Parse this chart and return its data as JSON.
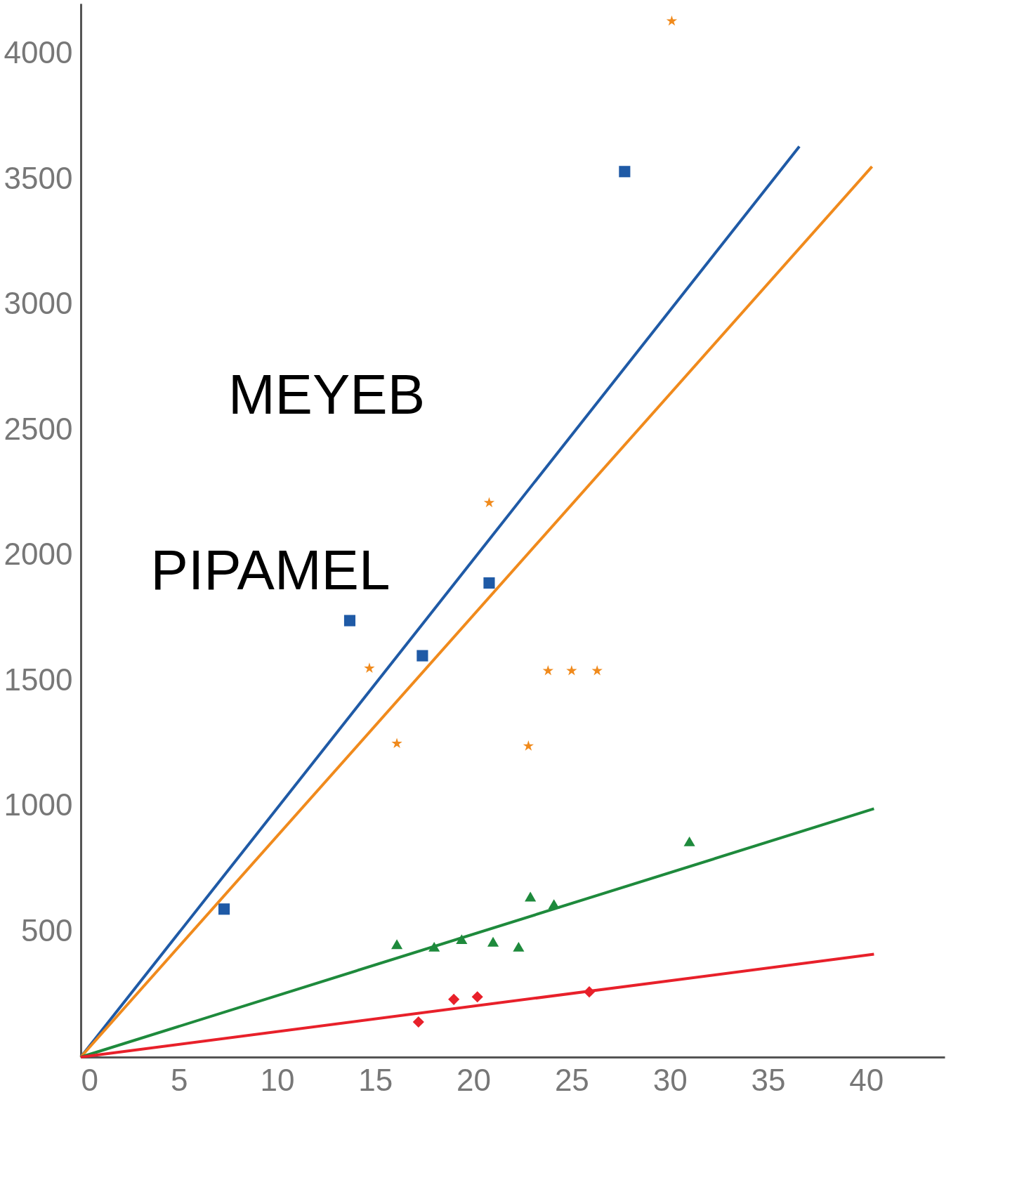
{
  "chart_data": {
    "type": "scatter",
    "xlim": [
      0,
      44
    ],
    "ylim": [
      0,
      4200
    ],
    "xticks": [
      0,
      5,
      10,
      15,
      20,
      25,
      30,
      35,
      40
    ],
    "yticks": [
      500,
      1000,
      1500,
      2000,
      2500,
      3000,
      3500,
      4000
    ],
    "grid": false,
    "annotations": [
      "MEYEB",
      "PIPAMEL"
    ],
    "series": [
      {
        "marker": "square",
        "color": "#1f5aa6",
        "x": [
          7.3,
          13.7,
          17.4,
          20.8,
          27.7
        ],
        "values": [
          590,
          1740,
          1600,
          1890,
          3530
        ]
      },
      {
        "marker": "star",
        "color": "#f08a1c",
        "x": [
          14.7,
          16.1,
          20.8,
          22.8,
          23.8,
          25.0,
          26.3,
          30.1
        ],
        "values": [
          1550,
          1250,
          2210,
          1240,
          1540,
          1540,
          1540,
          4130
        ]
      },
      {
        "marker": "triangle",
        "color": "#1e8a3c",
        "x": [
          16.1,
          18.0,
          19.4,
          21.0,
          22.3,
          22.9,
          24.1,
          31.0
        ],
        "values": [
          450,
          440,
          470,
          460,
          440,
          640,
          610,
          860
        ]
      },
      {
        "marker": "diamond",
        "color": "#e8202a",
        "x": [
          17.2,
          19.0,
          20.2,
          25.9
        ],
        "values": [
          140,
          230,
          240,
          260
        ]
      },
      {
        "type": "line",
        "line_style": "solid",
        "color": "#1f5aa6",
        "x": [
          0,
          36.6
        ],
        "values": [
          0,
          3630
        ]
      },
      {
        "type": "line",
        "line_style": "solid",
        "color": "#f08a1c",
        "x": [
          0,
          40.3
        ],
        "values": [
          0,
          3550
        ]
      },
      {
        "type": "line",
        "line_style": "solid",
        "color": "#1e8a3c",
        "x": [
          0,
          40.4
        ],
        "values": [
          0,
          990
        ]
      },
      {
        "type": "line",
        "line_style": "solid",
        "color": "#e8202a",
        "x": [
          0,
          40.4
        ],
        "values": [
          0,
          410
        ]
      }
    ]
  }
}
